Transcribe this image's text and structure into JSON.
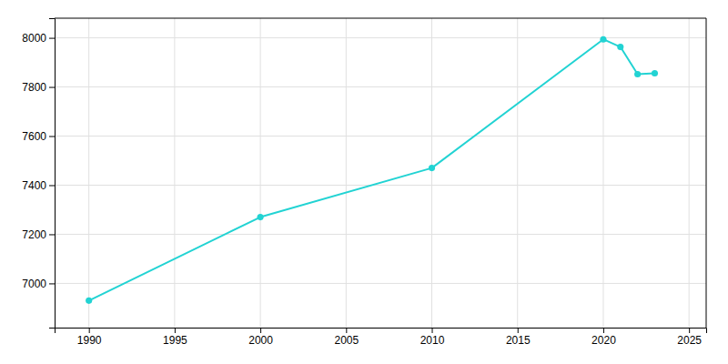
{
  "chart_data": {
    "type": "line",
    "x": [
      1990,
      2000,
      2010,
      2020,
      2021,
      2022,
      2023
    ],
    "values": [
      6930,
      7270,
      7470,
      7994,
      7963,
      7852,
      7856
    ],
    "color": "#22d3d3",
    "marker": "circle",
    "line_style": "solid",
    "xlim": [
      1988,
      2026
    ],
    "ylim": [
      6820,
      8080
    ],
    "xticks": [
      1990,
      1995,
      2000,
      2005,
      2010,
      2015,
      2020,
      2025
    ],
    "yticks": [
      7000,
      7200,
      7400,
      7600,
      7800,
      8000
    ],
    "grid": true
  }
}
